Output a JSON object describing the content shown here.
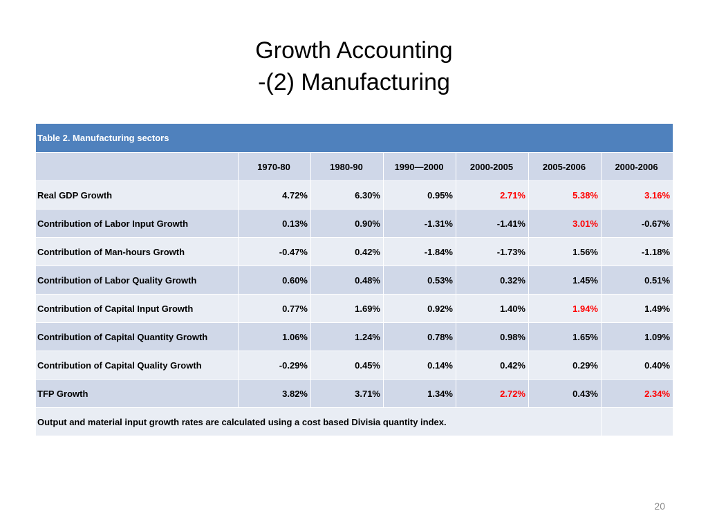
{
  "slide": {
    "title_line1": "Growth Accounting",
    "title_line2": "-(2) Manufacturing",
    "page_number": "20"
  },
  "table": {
    "caption": "Table 2. Manufacturing sectors",
    "columns": [
      "1970-80",
      "1980-90",
      "1990—2000",
      "2000-2005",
      "2005-2006",
      "2000-2006"
    ],
    "rows": [
      {
        "label": "Real GDP Growth",
        "indent": false,
        "values": [
          "4.72%",
          "6.30%",
          "0.95%",
          "2.71%",
          "5.38%",
          "3.16%"
        ],
        "red": [
          false,
          false,
          false,
          true,
          true,
          true
        ]
      },
      {
        "label": "Contribution of Labor Input Growth",
        "indent": false,
        "values": [
          "0.13%",
          "0.90%",
          "-1.31%",
          "-1.41%",
          "3.01%",
          "-0.67%"
        ],
        "red": [
          false,
          false,
          false,
          false,
          true,
          false
        ]
      },
      {
        "label": "Contribution of Man-hours Growth",
        "indent": true,
        "values": [
          "-0.47%",
          "0.42%",
          "-1.84%",
          "-1.73%",
          "1.56%",
          "-1.18%"
        ],
        "red": [
          false,
          false,
          false,
          false,
          false,
          false
        ]
      },
      {
        "label": "Contribution of Labor Quality Growth",
        "indent": true,
        "values": [
          "0.60%",
          "0.48%",
          "0.53%",
          "0.32%",
          "1.45%",
          "0.51%"
        ],
        "red": [
          false,
          false,
          false,
          false,
          false,
          false
        ]
      },
      {
        "label": "Contribution of Capital Input Growth",
        "indent": false,
        "values": [
          "0.77%",
          "1.69%",
          "0.92%",
          "1.40%",
          "1.94%",
          "1.49%"
        ],
        "red": [
          false,
          false,
          false,
          false,
          true,
          false
        ]
      },
      {
        "label": "Contribution of Capital Quantity Growth",
        "indent": true,
        "values": [
          "1.06%",
          "1.24%",
          "0.78%",
          "0.98%",
          "1.65%",
          "1.09%"
        ],
        "red": [
          false,
          false,
          false,
          false,
          false,
          false
        ]
      },
      {
        "label": "Contribution of Capital Quality Growth",
        "indent": true,
        "values": [
          "-0.29%",
          "0.45%",
          "0.14%",
          "0.42%",
          "0.29%",
          "0.40%"
        ],
        "red": [
          false,
          false,
          false,
          false,
          false,
          false
        ]
      },
      {
        "label": "TFP Growth",
        "indent": false,
        "values": [
          "3.82%",
          "3.71%",
          "1.34%",
          "2.72%",
          "0.43%",
          "2.34%"
        ],
        "red": [
          false,
          false,
          false,
          true,
          false,
          true
        ]
      }
    ],
    "footnote": "Output and material input growth rates are calculated using a cost based Divisia quantity index."
  },
  "colors": {
    "header_blue": "#4f81bd",
    "band_dark": "#d0d8e8",
    "band_light": "#e9edf4",
    "highlight_red": "#ff0000"
  }
}
